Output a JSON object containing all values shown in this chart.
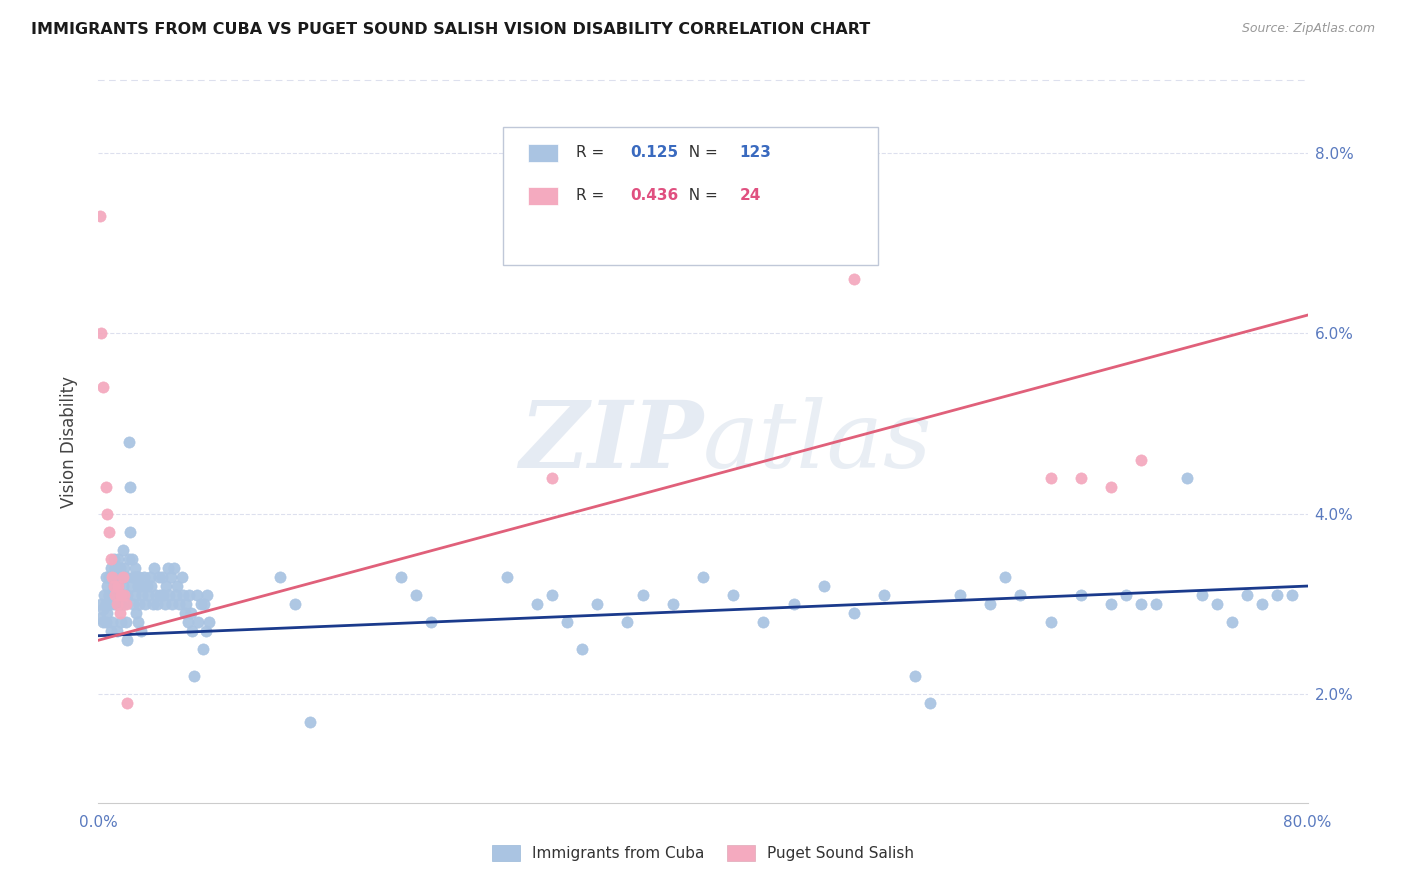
{
  "title": "IMMIGRANTS FROM CUBA VS PUGET SOUND SALISH VISION DISABILITY CORRELATION CHART",
  "source": "Source: ZipAtlas.com",
  "ylabel_label": "Vision Disability",
  "legend_labels": [
    "Immigrants from Cuba",
    "Puget Sound Salish"
  ],
  "blue_R": "0.125",
  "blue_N": "123",
  "pink_R": "0.436",
  "pink_N": "24",
  "blue_color": "#aac4e2",
  "pink_color": "#f4aabf",
  "blue_line_color": "#1a3a8c",
  "pink_line_color": "#e0607a",
  "watermark": "ZIPatlas",
  "blue_scatter": [
    [
      0.001,
      0.0285
    ],
    [
      0.002,
      0.03
    ],
    [
      0.003,
      0.0295
    ],
    [
      0.003,
      0.028
    ],
    [
      0.004,
      0.031
    ],
    [
      0.005,
      0.033
    ],
    [
      0.005,
      0.03
    ],
    [
      0.005,
      0.028
    ],
    [
      0.006,
      0.032
    ],
    [
      0.006,
      0.029
    ],
    [
      0.007,
      0.033
    ],
    [
      0.007,
      0.031
    ],
    [
      0.007,
      0.03
    ],
    [
      0.008,
      0.034
    ],
    [
      0.008,
      0.031
    ],
    [
      0.008,
      0.027
    ],
    [
      0.009,
      0.033
    ],
    [
      0.009,
      0.031
    ],
    [
      0.009,
      0.028
    ],
    [
      0.01,
      0.035
    ],
    [
      0.01,
      0.032
    ],
    [
      0.01,
      0.03
    ],
    [
      0.011,
      0.034
    ],
    [
      0.011,
      0.032
    ],
    [
      0.012,
      0.033
    ],
    [
      0.012,
      0.03
    ],
    [
      0.012,
      0.027
    ],
    [
      0.013,
      0.035
    ],
    [
      0.013,
      0.032
    ],
    [
      0.014,
      0.034
    ],
    [
      0.014,
      0.031
    ],
    [
      0.015,
      0.033
    ],
    [
      0.015,
      0.03
    ],
    [
      0.015,
      0.028
    ],
    [
      0.016,
      0.036
    ],
    [
      0.016,
      0.032
    ],
    [
      0.017,
      0.034
    ],
    [
      0.017,
      0.03
    ],
    [
      0.018,
      0.033
    ],
    [
      0.018,
      0.028
    ],
    [
      0.019,
      0.031
    ],
    [
      0.019,
      0.026
    ],
    [
      0.02,
      0.048
    ],
    [
      0.02,
      0.035
    ],
    [
      0.021,
      0.043
    ],
    [
      0.021,
      0.038
    ],
    [
      0.022,
      0.035
    ],
    [
      0.022,
      0.032
    ],
    [
      0.023,
      0.033
    ],
    [
      0.023,
      0.03
    ],
    [
      0.024,
      0.034
    ],
    [
      0.024,
      0.031
    ],
    [
      0.025,
      0.033
    ],
    [
      0.025,
      0.029
    ],
    [
      0.026,
      0.032
    ],
    [
      0.026,
      0.028
    ],
    [
      0.027,
      0.033
    ],
    [
      0.027,
      0.03
    ],
    [
      0.028,
      0.032
    ],
    [
      0.028,
      0.027
    ],
    [
      0.029,
      0.031
    ],
    [
      0.03,
      0.033
    ],
    [
      0.031,
      0.03
    ],
    [
      0.032,
      0.032
    ],
    [
      0.033,
      0.031
    ],
    [
      0.034,
      0.033
    ],
    [
      0.035,
      0.032
    ],
    [
      0.036,
      0.03
    ],
    [
      0.037,
      0.034
    ],
    [
      0.038,
      0.031
    ],
    [
      0.039,
      0.03
    ],
    [
      0.04,
      0.033
    ],
    [
      0.041,
      0.031
    ],
    [
      0.042,
      0.033
    ],
    [
      0.043,
      0.031
    ],
    [
      0.044,
      0.03
    ],
    [
      0.045,
      0.032
    ],
    [
      0.046,
      0.034
    ],
    [
      0.047,
      0.031
    ],
    [
      0.048,
      0.033
    ],
    [
      0.049,
      0.03
    ],
    [
      0.05,
      0.034
    ],
    [
      0.051,
      0.031
    ],
    [
      0.052,
      0.032
    ],
    [
      0.053,
      0.03
    ],
    [
      0.055,
      0.033
    ],
    [
      0.056,
      0.031
    ],
    [
      0.057,
      0.029
    ],
    [
      0.058,
      0.03
    ],
    [
      0.059,
      0.028
    ],
    [
      0.06,
      0.031
    ],
    [
      0.061,
      0.029
    ],
    [
      0.062,
      0.027
    ],
    [
      0.063,
      0.022
    ],
    [
      0.065,
      0.031
    ],
    [
      0.066,
      0.028
    ],
    [
      0.068,
      0.03
    ],
    [
      0.069,
      0.025
    ],
    [
      0.07,
      0.03
    ],
    [
      0.071,
      0.027
    ],
    [
      0.072,
      0.031
    ],
    [
      0.073,
      0.028
    ],
    [
      0.12,
      0.033
    ],
    [
      0.13,
      0.03
    ],
    [
      0.14,
      0.017
    ],
    [
      0.2,
      0.033
    ],
    [
      0.21,
      0.031
    ],
    [
      0.22,
      0.028
    ],
    [
      0.27,
      0.033
    ],
    [
      0.29,
      0.03
    ],
    [
      0.3,
      0.031
    ],
    [
      0.31,
      0.028
    ],
    [
      0.32,
      0.025
    ],
    [
      0.33,
      0.03
    ],
    [
      0.35,
      0.028
    ],
    [
      0.36,
      0.031
    ],
    [
      0.38,
      0.03
    ],
    [
      0.4,
      0.033
    ],
    [
      0.42,
      0.031
    ],
    [
      0.44,
      0.028
    ],
    [
      0.46,
      0.03
    ],
    [
      0.48,
      0.032
    ],
    [
      0.5,
      0.029
    ],
    [
      0.52,
      0.031
    ],
    [
      0.54,
      0.022
    ],
    [
      0.55,
      0.019
    ],
    [
      0.57,
      0.031
    ],
    [
      0.59,
      0.03
    ],
    [
      0.6,
      0.033
    ],
    [
      0.61,
      0.031
    ],
    [
      0.63,
      0.028
    ],
    [
      0.65,
      0.031
    ],
    [
      0.67,
      0.03
    ],
    [
      0.68,
      0.031
    ],
    [
      0.69,
      0.03
    ],
    [
      0.7,
      0.03
    ],
    [
      0.72,
      0.044
    ],
    [
      0.73,
      0.031
    ],
    [
      0.74,
      0.03
    ],
    [
      0.75,
      0.028
    ],
    [
      0.76,
      0.031
    ],
    [
      0.77,
      0.03
    ],
    [
      0.78,
      0.031
    ],
    [
      0.79,
      0.031
    ]
  ],
  "pink_scatter": [
    [
      0.001,
      0.073
    ],
    [
      0.002,
      0.06
    ],
    [
      0.003,
      0.054
    ],
    [
      0.005,
      0.043
    ],
    [
      0.006,
      0.04
    ],
    [
      0.007,
      0.038
    ],
    [
      0.008,
      0.035
    ],
    [
      0.009,
      0.033
    ],
    [
      0.01,
      0.032
    ],
    [
      0.011,
      0.031
    ],
    [
      0.012,
      0.03
    ],
    [
      0.013,
      0.032
    ],
    [
      0.014,
      0.029
    ],
    [
      0.015,
      0.031
    ],
    [
      0.016,
      0.033
    ],
    [
      0.017,
      0.031
    ],
    [
      0.018,
      0.03
    ],
    [
      0.019,
      0.019
    ],
    [
      0.3,
      0.044
    ],
    [
      0.5,
      0.066
    ],
    [
      0.63,
      0.044
    ],
    [
      0.65,
      0.044
    ],
    [
      0.67,
      0.043
    ],
    [
      0.69,
      0.046
    ]
  ],
  "blue_trendline_x": [
    0.0,
    0.8
  ],
  "blue_trendline_y": [
    0.0265,
    0.032
  ],
  "pink_trendline_x": [
    0.0,
    0.8
  ],
  "pink_trendline_y": [
    0.026,
    0.062
  ],
  "xmin": 0.0,
  "xmax": 0.8,
  "ymin": 0.008,
  "ymax": 0.088,
  "ytick_vals": [
    0.02,
    0.04,
    0.06,
    0.08
  ],
  "ytick_labels": [
    "2.0%",
    "4.0%",
    "6.0%",
    "8.0%"
  ],
  "xtick_vals": [
    0.0,
    0.1,
    0.2,
    0.3,
    0.4,
    0.5,
    0.6,
    0.7,
    0.8
  ],
  "xtick_labels": [
    "0.0%",
    "",
    "",
    "",
    "",
    "",
    "",
    "",
    "80.0%"
  ],
  "xtick_labels_show": [
    "0.0%",
    "80.0%"
  ],
  "grid_color": "#dde0ee",
  "spine_color": "#cccccc",
  "tick_color": "#5a7abf",
  "title_fontsize": 11.5,
  "axis_fontsize": 11,
  "source_color": "#999999"
}
